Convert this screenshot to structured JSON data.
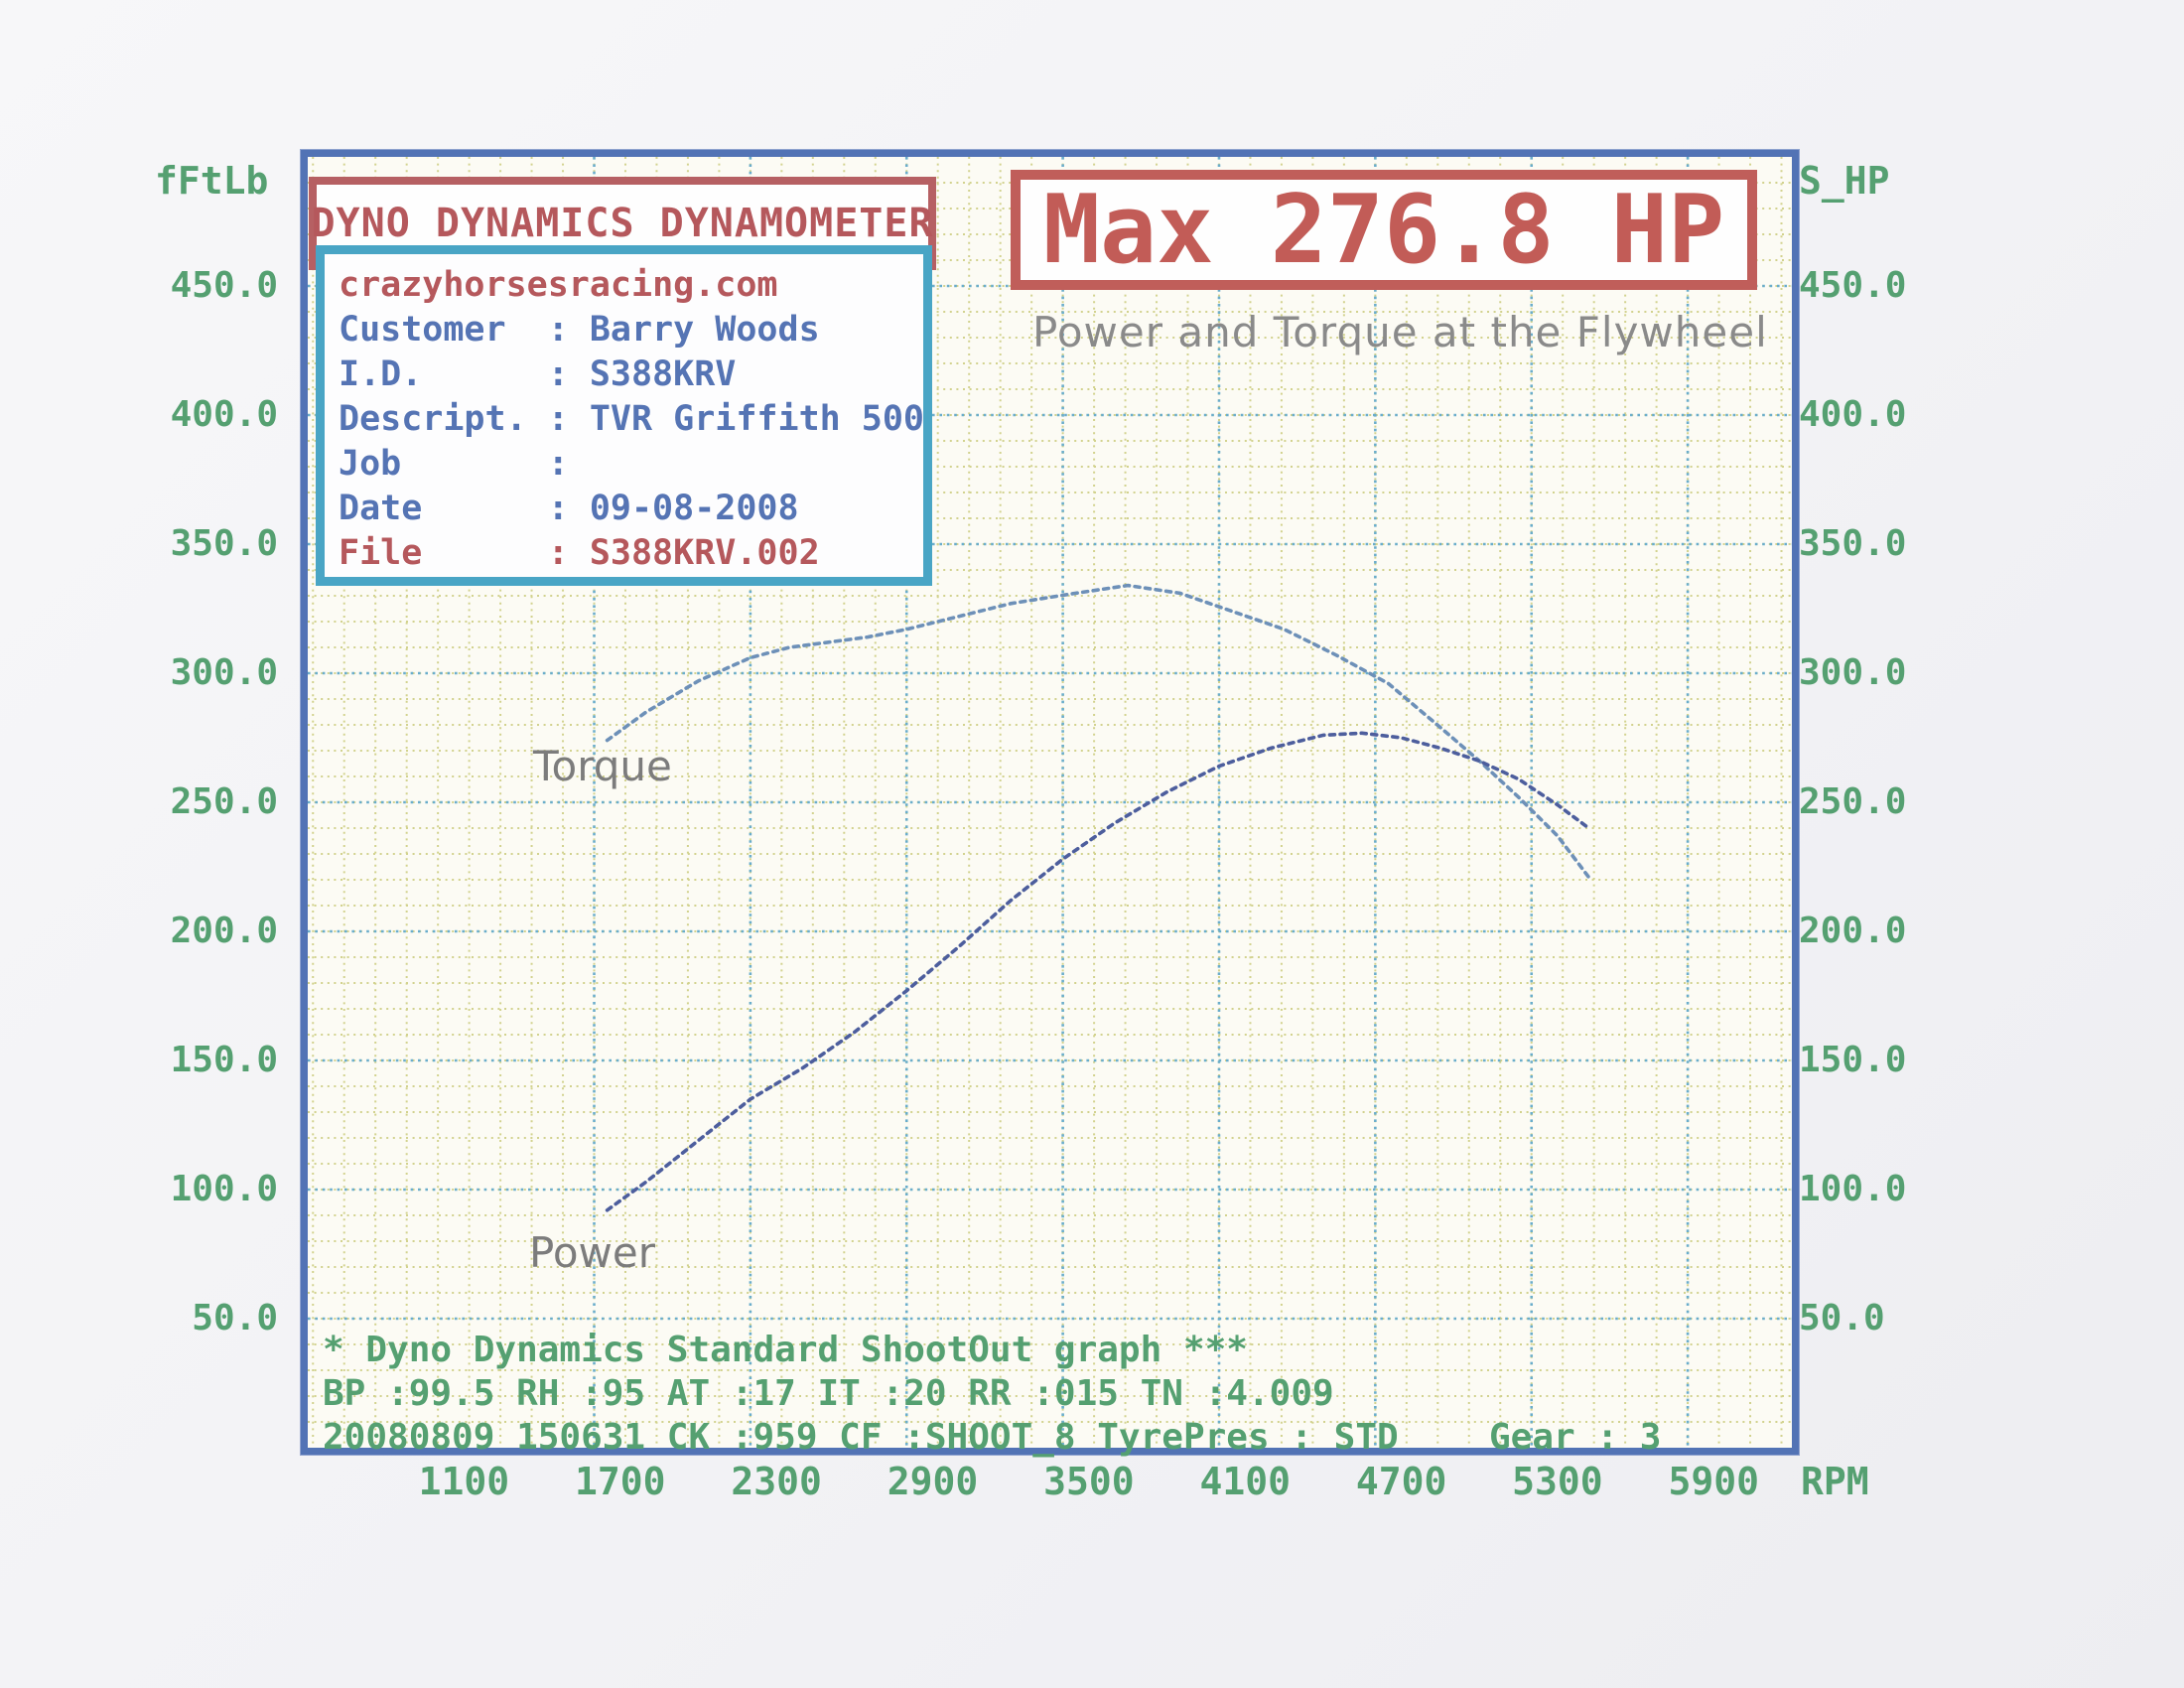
{
  "header": {
    "title": "DYNO DYNAMICS DYNAMOMETER"
  },
  "info_box": {
    "website": "crazyhorsesracing.com",
    "rows": [
      {
        "label": "Customer",
        "value": "Barry Woods"
      },
      {
        "label": "I.D.",
        "value": "S388KRV"
      },
      {
        "label": "Descript.",
        "value": "TVR Griffith 500"
      },
      {
        "label": "Job",
        "value": ""
      },
      {
        "label": "Date",
        "value": "09-08-2008"
      },
      {
        "label": "File",
        "value": "S388KRV.002"
      }
    ]
  },
  "chart_data": {
    "type": "line",
    "title": "Max 276.8 HP",
    "subtitle": "Power and Torque at the Flywheel",
    "x_axis": {
      "label": "RPM",
      "range": [
        500,
        6200
      ],
      "ticks": [
        1100,
        1700,
        2300,
        2900,
        3500,
        4100,
        4700,
        5300,
        5900
      ]
    },
    "y_axis": {
      "label_left": "fFtLb",
      "label_right": "S_HP",
      "range": [
        0,
        500
      ],
      "ticks": [
        450,
        400,
        350,
        300,
        250,
        200,
        150,
        100,
        50
      ]
    },
    "grid": {
      "x_minor_start": 520,
      "x_minor_step": 120,
      "x_major_start": 1600,
      "x_major_step": 600,
      "y_minor_start": 10,
      "y_minor_step": 10,
      "y_major_start": 50,
      "y_major_step": 50,
      "legend": "off"
    },
    "series": [
      {
        "name": "Torque",
        "label": "Torque",
        "color": "#6d90b8",
        "units": "ft-lb",
        "points": [
          [
            1650,
            274
          ],
          [
            1800,
            285
          ],
          [
            2000,
            297
          ],
          [
            2200,
            306
          ],
          [
            2350,
            310
          ],
          [
            2500,
            312
          ],
          [
            2650,
            314
          ],
          [
            2800,
            317
          ],
          [
            3000,
            322
          ],
          [
            3200,
            327
          ],
          [
            3450,
            331
          ],
          [
            3650,
            334
          ],
          [
            3850,
            331
          ],
          [
            4050,
            324
          ],
          [
            4250,
            317
          ],
          [
            4450,
            307
          ],
          [
            4650,
            296
          ],
          [
            4850,
            279
          ],
          [
            5000,
            266
          ],
          [
            5150,
            252
          ],
          [
            5300,
            237
          ],
          [
            5420,
            221
          ]
        ]
      },
      {
        "name": "Power",
        "label": "Power",
        "color": "#4d5e9d",
        "units": "HP",
        "points": [
          [
            1650,
            92
          ],
          [
            1800,
            103
          ],
          [
            2000,
            119
          ],
          [
            2200,
            135
          ],
          [
            2400,
            147
          ],
          [
            2600,
            161
          ],
          [
            2800,
            177
          ],
          [
            3000,
            194
          ],
          [
            3200,
            212
          ],
          [
            3400,
            228
          ],
          [
            3600,
            242
          ],
          [
            3800,
            254
          ],
          [
            4000,
            264
          ],
          [
            4200,
            271
          ],
          [
            4400,
            276
          ],
          [
            4550,
            276.8
          ],
          [
            4700,
            275
          ],
          [
            4850,
            271
          ],
          [
            5000,
            266
          ],
          [
            5150,
            259
          ],
          [
            5300,
            249
          ],
          [
            5420,
            240
          ]
        ]
      }
    ]
  },
  "footer": {
    "line1": "* Dyno Dynamics Standard ShootOut graph ***",
    "line2": "BP :99.5  RH :95 AT :17 IT :20  RR :015 TN :4.009",
    "line3": "20080809 150631 CK :959 CF :SHOOT_8  TyrePres : STD",
    "gear": "Gear : 3"
  },
  "colors": {
    "red": "#bc5f5e",
    "teal": "#49a5c5",
    "blue": "#5574b4",
    "green": "#55a071",
    "gray": "#8a8a8a",
    "border-blue": "#5273b5",
    "grid-minor": "#d2d28e",
    "grid-major": "#6aadcb"
  }
}
